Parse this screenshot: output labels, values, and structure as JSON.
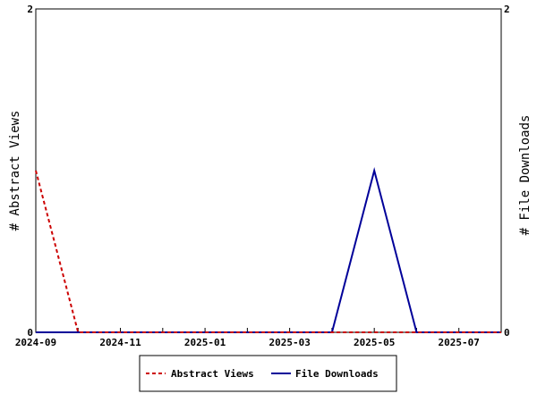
{
  "chart_data": {
    "type": "line",
    "x": [
      "2024-09",
      "2024-10",
      "2024-11",
      "2024-12",
      "2025-01",
      "2025-02",
      "2025-03",
      "2025-04",
      "2025-05",
      "2025-06",
      "2025-07",
      "2025-08"
    ],
    "x_tick_labels": [
      "2024-09",
      "2024-11",
      "2025-01",
      "2025-03",
      "2025-05",
      "2025-07"
    ],
    "xlim": [
      "2024-09",
      "2025-08"
    ],
    "series": [
      {
        "name": "Abstract Views",
        "axis": "left",
        "color": "#cc0000",
        "style": "dashed",
        "values": [
          1,
          0,
          0,
          0,
          0,
          0,
          0,
          0,
          0,
          0,
          0,
          0
        ]
      },
      {
        "name": "File Downloads",
        "axis": "right",
        "color": "#000099",
        "style": "solid",
        "values": [
          0,
          0,
          0,
          0,
          0,
          0,
          0,
          0,
          1,
          0,
          0,
          0
        ]
      }
    ],
    "ylabel_left": "# Abstract Views",
    "ylabel_right": "# File Downloads",
    "ylim_left": [
      0,
      2
    ],
    "ylim_right": [
      0,
      2
    ],
    "y_ticks_left": [
      "0",
      "2"
    ],
    "y_ticks_right": [
      "0",
      "2"
    ],
    "grid": false,
    "legend": "bottom-center"
  }
}
